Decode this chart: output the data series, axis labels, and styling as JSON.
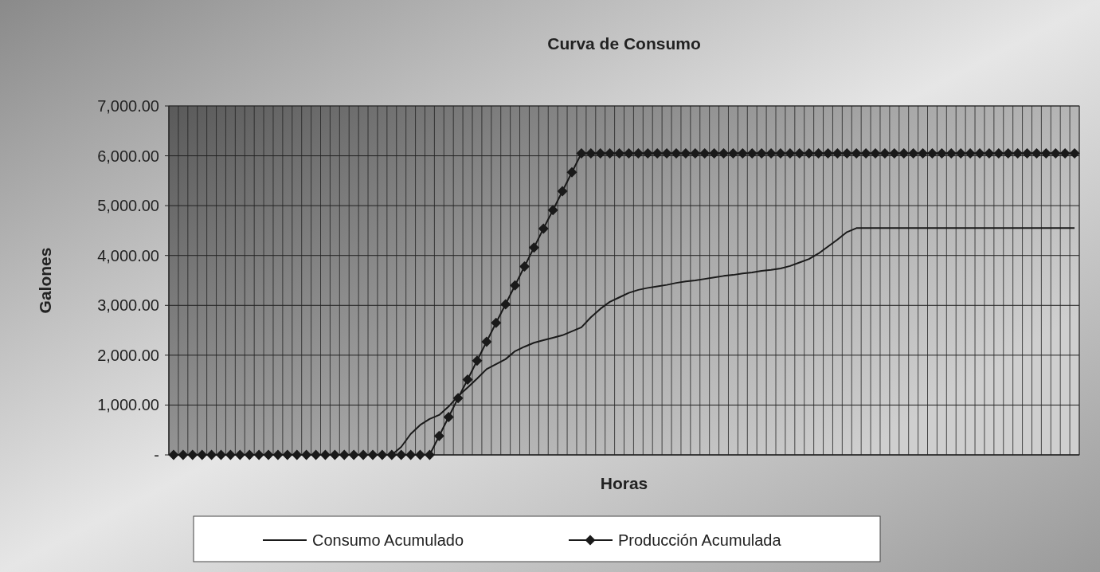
{
  "chart_data": {
    "type": "line",
    "title": "Curva de Consumo",
    "xlabel": "Horas",
    "ylabel": "Galones",
    "categories": [
      null,
      null,
      null,
      null,
      null,
      null,
      null,
      null,
      null,
      null,
      null,
      null,
      null,
      null,
      null,
      null,
      null,
      null,
      null,
      null,
      null,
      null,
      null,
      null,
      null,
      null,
      null,
      null,
      null,
      null,
      null,
      null,
      null,
      null,
      null,
      null,
      null,
      null,
      null,
      null,
      null,
      null,
      null,
      null,
      null,
      null,
      null,
      null,
      null,
      null,
      null,
      null,
      null,
      null,
      null,
      null,
      null,
      null,
      null,
      null,
      null,
      null,
      null,
      null,
      null,
      null,
      null,
      null,
      null,
      null,
      null,
      null,
      null,
      null,
      null,
      null,
      null,
      null,
      null,
      null,
      null,
      null,
      null,
      null,
      null,
      null,
      null,
      null,
      null,
      null,
      null,
      null,
      null,
      null,
      null,
      null
    ],
    "series": [
      {
        "name": "Consumo Acumulado",
        "color": "#1a1a1a",
        "marker": "none",
        "values": [
          0,
          0,
          0,
          0,
          0,
          0,
          0,
          0,
          0,
          0,
          0,
          0,
          0,
          0,
          0,
          0,
          0,
          0,
          0,
          0,
          0,
          0,
          0,
          0,
          160,
          420,
          600,
          720,
          800,
          970,
          1180,
          1350,
          1530,
          1720,
          1820,
          1920,
          2080,
          2170,
          2250,
          2300,
          2350,
          2400,
          2480,
          2560,
          2760,
          2930,
          3070,
          3160,
          3250,
          3310,
          3350,
          3380,
          3410,
          3450,
          3480,
          3500,
          3530,
          3560,
          3590,
          3610,
          3640,
          3660,
          3690,
          3710,
          3740,
          3790,
          3860,
          3930,
          4040,
          4180,
          4320,
          4470,
          4550,
          4550,
          4550,
          4550,
          4550,
          4550,
          4550,
          4550,
          4550,
          4550,
          4550,
          4550,
          4550,
          4550,
          4550,
          4550,
          4550,
          4550,
          4550,
          4550,
          4550,
          4550,
          4550,
          4550
        ]
      },
      {
        "name": "Producción Acumulada",
        "color": "#1a1a1a",
        "marker": "diamond",
        "values": [
          0,
          0,
          0,
          0,
          0,
          0,
          0,
          0,
          0,
          0,
          0,
          0,
          0,
          0,
          0,
          0,
          0,
          0,
          0,
          0,
          0,
          0,
          0,
          0,
          0,
          0,
          0,
          0,
          380,
          760,
          1140,
          1510,
          1890,
          2270,
          2650,
          3020,
          3400,
          3780,
          4160,
          4540,
          4910,
          5290,
          5670,
          6050,
          6050,
          6050,
          6050,
          6050,
          6050,
          6050,
          6050,
          6050,
          6050,
          6050,
          6050,
          6050,
          6050,
          6050,
          6050,
          6050,
          6050,
          6050,
          6050,
          6050,
          6050,
          6050,
          6050,
          6050,
          6050,
          6050,
          6050,
          6050,
          6050,
          6050,
          6050,
          6050,
          6050,
          6050,
          6050,
          6050,
          6050,
          6050,
          6050,
          6050,
          6050,
          6050,
          6050,
          6050,
          6050,
          6050,
          6050,
          6050,
          6050,
          6050,
          6050,
          6050
        ]
      }
    ],
    "ylim": [
      0,
      7000
    ],
    "yticks": [
      {
        "value": 0,
        "label": "-"
      },
      {
        "value": 1000,
        "label": "1,000.00"
      },
      {
        "value": 2000,
        "label": "2,000.00"
      },
      {
        "value": 3000,
        "label": "3,000.00"
      },
      {
        "value": 4000,
        "label": "4,000.00"
      },
      {
        "value": 5000,
        "label": "5,000.00"
      },
      {
        "value": 6000,
        "label": "6,000.00"
      },
      {
        "value": 7000,
        "label": "7,000.00"
      }
    ],
    "grid": true,
    "legend": "bottom",
    "line_style": "solid"
  }
}
